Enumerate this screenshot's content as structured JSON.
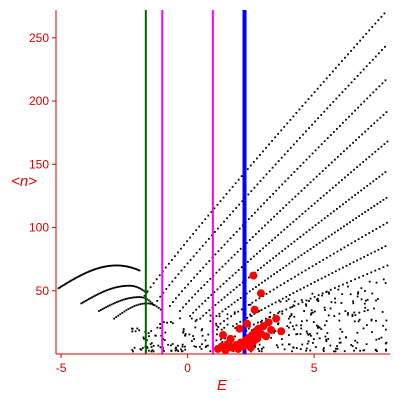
{
  "chart_data": {
    "type": "scatter",
    "xlabel": "E",
    "ylabel": "<n>",
    "xlim": [
      -5.2,
      8
    ],
    "ylim": [
      0,
      272
    ],
    "x_ticks": [
      -5,
      0,
      5
    ],
    "y_ticks": [
      50,
      100,
      150,
      200,
      250
    ],
    "grid": false,
    "colors": {
      "axis": "#e00000",
      "points": "#000000",
      "highlight": "#ff0000",
      "line_green": "#006400",
      "line_magenta": "#ff00ff",
      "line_blue": "#0000ff"
    },
    "vertical_lines": [
      {
        "x": -1.65,
        "color": "#006400",
        "width": 2
      },
      {
        "x": -1.0,
        "color": "#ff00ff",
        "width": 2
      },
      {
        "x": 1.0,
        "color": "#ff00ff",
        "width": 2
      },
      {
        "x": 2.25,
        "color": "#0000ff",
        "width": 4
      }
    ],
    "rays": [
      {
        "x_start": -1.7,
        "x_end": 7.9,
        "n_start": 46,
        "n_end": 272,
        "step": 0.12
      },
      {
        "x_start": -1.2,
        "x_end": 7.9,
        "n_start": 42,
        "n_end": 245,
        "step": 0.12
      },
      {
        "x_start": -0.7,
        "x_end": 7.9,
        "n_start": 38,
        "n_end": 218,
        "step": 0.12
      },
      {
        "x_start": -0.3,
        "x_end": 7.9,
        "n_start": 34,
        "n_end": 192,
        "step": 0.12
      },
      {
        "x_start": 0.1,
        "x_end": 7.9,
        "n_start": 30,
        "n_end": 168,
        "step": 0.12
      },
      {
        "x_start": 0.5,
        "x_end": 7.9,
        "n_start": 28,
        "n_end": 145,
        "step": 0.12
      },
      {
        "x_start": 0.9,
        "x_end": 7.9,
        "n_start": 26,
        "n_end": 124,
        "step": 0.12
      },
      {
        "x_start": 1.3,
        "x_end": 7.9,
        "n_start": 24,
        "n_end": 104,
        "step": 0.14
      },
      {
        "x_start": 1.8,
        "x_end": 7.9,
        "n_start": 22,
        "n_end": 86,
        "step": 0.14
      },
      {
        "x_start": 2.3,
        "x_end": 7.9,
        "n_start": 20,
        "n_end": 70,
        "step": 0.16
      }
    ],
    "arcs": [
      {
        "x_start": -5.1,
        "x_end": -1.9,
        "n_start": 52,
        "n_end": 66,
        "peak_x": -2.8,
        "peak_n": 70,
        "step": 0.05
      },
      {
        "x_start": -4.2,
        "x_end": -1.6,
        "n_start": 40,
        "n_end": 48,
        "peak_x": -2.3,
        "peak_n": 54,
        "step": 0.06
      },
      {
        "x_start": -3.5,
        "x_end": -1.3,
        "n_start": 34,
        "n_end": 38,
        "peak_x": -1.9,
        "peak_n": 45,
        "step": 0.07
      },
      {
        "x_start": -2.9,
        "x_end": -1.0,
        "n_start": 28,
        "n_end": 34,
        "peak_x": -1.6,
        "peak_n": 40,
        "step": 0.08
      }
    ],
    "low_cloud": {
      "x_range": [
        -2.2,
        7.9
      ],
      "n_range": [
        2,
        60
      ],
      "count": 360
    },
    "red_points": [
      [
        1.2,
        4
      ],
      [
        1.35,
        6
      ],
      [
        1.5,
        3
      ],
      [
        1.6,
        8
      ],
      [
        1.75,
        5
      ],
      [
        1.9,
        7
      ],
      [
        2.0,
        4
      ],
      [
        2.1,
        9
      ],
      [
        2.2,
        6
      ],
      [
        2.3,
        11
      ],
      [
        2.4,
        8
      ],
      [
        2.45,
        13
      ],
      [
        2.5,
        5
      ],
      [
        2.55,
        15
      ],
      [
        2.6,
        10
      ],
      [
        2.7,
        18
      ],
      [
        2.75,
        12
      ],
      [
        2.8,
        20
      ],
      [
        2.9,
        16
      ],
      [
        3.0,
        22
      ],
      [
        3.1,
        14
      ],
      [
        3.2,
        25
      ],
      [
        3.3,
        19
      ],
      [
        2.65,
        35
      ],
      [
        2.9,
        48
      ],
      [
        3.5,
        28
      ],
      [
        2.6,
        62
      ],
      [
        1.7,
        12
      ],
      [
        2.35,
        24
      ],
      [
        3.7,
        18
      ],
      [
        1.4,
        15
      ],
      [
        2.05,
        20
      ]
    ]
  }
}
